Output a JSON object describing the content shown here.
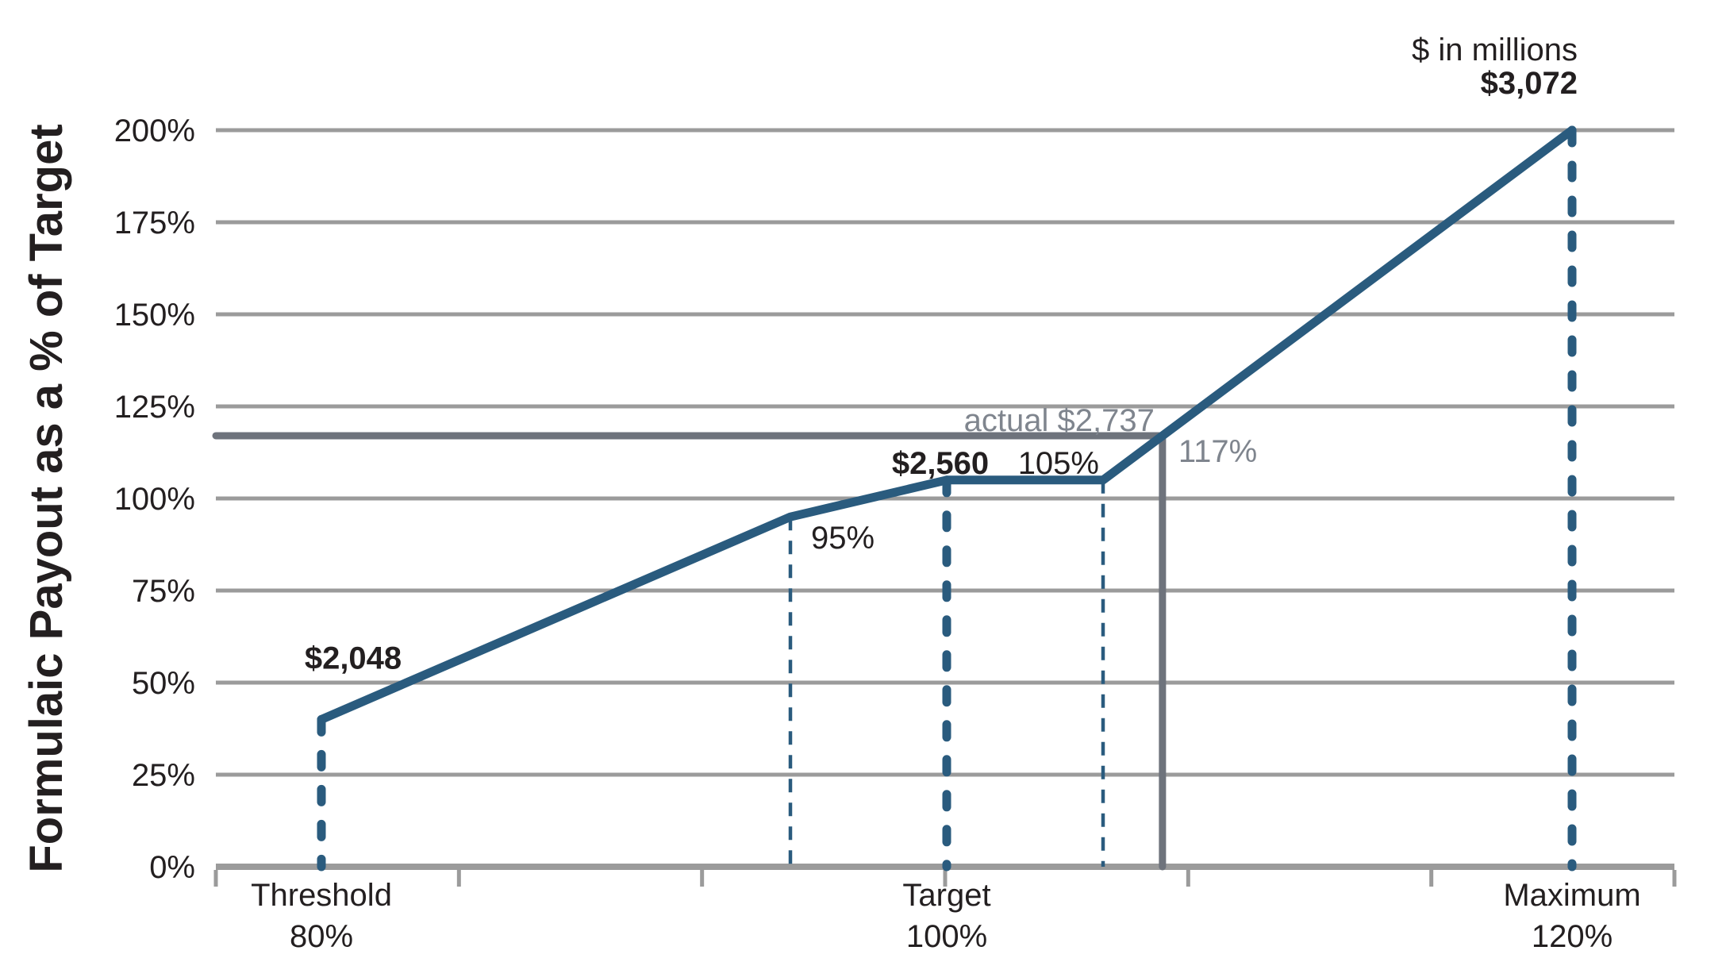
{
  "chart_data": {
    "type": "line",
    "title": "",
    "ylabel": "Formulaic Payout as a % of Target",
    "xlabel": "",
    "units_note": "$ in millions",
    "y_axis": {
      "min": 0,
      "max": 200,
      "step": 25,
      "tick_labels": [
        "0%",
        "25%",
        "50%",
        "75%",
        "100%",
        "125%",
        "150%",
        "175%",
        "200%"
      ],
      "grid": true
    },
    "x_axis": {
      "unit": "performance as % of target",
      "visible_range_pct": [
        76.6,
        123.3
      ],
      "tick_count": 7,
      "categories": [
        {
          "name": "Threshold",
          "pct_label": "80%",
          "pct": 80,
          "dollar_label": "$2,048"
        },
        {
          "name": "Target",
          "pct_label": "100%",
          "pct": 100,
          "dollar_label": "$2,560"
        },
        {
          "name": "Maximum",
          "pct_label": "120%",
          "pct": 120,
          "dollar_label": "$3,072"
        }
      ]
    },
    "series": [
      {
        "name": "Formulaic payout curve",
        "points": [
          {
            "performance_pct": 80,
            "payout_pct": 40
          },
          {
            "performance_pct": 95,
            "payout_pct": 95
          },
          {
            "performance_pct": 100,
            "payout_pct": 105
          },
          {
            "performance_pct": 105,
            "payout_pct": 105
          },
          {
            "performance_pct": 120,
            "payout_pct": 200
          }
        ]
      }
    ],
    "guide_lines": {
      "thick_dashed_at_pct": [
        80,
        100,
        120
      ],
      "thin_dashed_at_pct": [
        95,
        105
      ]
    },
    "actual": {
      "label": "actual $2,737",
      "amount_millions": 2737,
      "performance_pct": 106.9,
      "payout_pct": 117,
      "payout_label": "117%"
    },
    "annotations": [
      {
        "id": "threshold-amount",
        "text": "$2,048"
      },
      {
        "id": "kink-95",
        "text": "95%"
      },
      {
        "id": "target-amount",
        "text": "$2,560"
      },
      {
        "id": "kink-105",
        "text": "105%"
      },
      {
        "id": "actual-amount",
        "text": "actual $2,737"
      },
      {
        "id": "actual-payout",
        "text": "117%"
      },
      {
        "id": "units-note",
        "text": "$ in millions"
      },
      {
        "id": "maximum-amount",
        "text": "$3,072"
      }
    ],
    "legend": null,
    "colors": {
      "line_blue": "#2A5B7E",
      "grid_gray": "#9B9B9B",
      "axis_gray": "#9B9B9B",
      "actual_line_gray": "#6E737C",
      "gray_text": "#7F858E",
      "black_text": "#231F20",
      "background": "#FFFFFF"
    }
  }
}
